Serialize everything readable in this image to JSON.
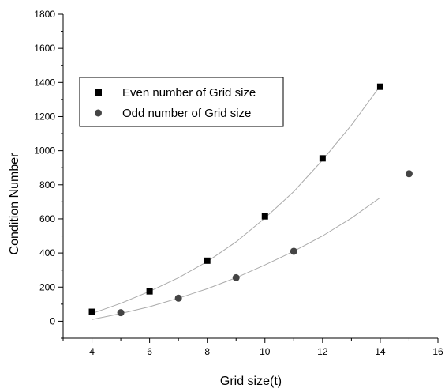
{
  "chart_data": {
    "type": "scatter",
    "title": "",
    "xlabel": "Grid size(t)",
    "ylabel": "Condition Number",
    "xlim": [
      3,
      16
    ],
    "ylim": [
      -100,
      1800
    ],
    "xticks": [
      4,
      6,
      8,
      10,
      12,
      14,
      16
    ],
    "yticks": [
      0,
      200,
      400,
      600,
      800,
      1000,
      1200,
      1400,
      1600,
      1800
    ],
    "grid": false,
    "legend": "upper-left",
    "series": [
      {
        "name": "Even number of Grid size",
        "marker": "square",
        "color": "#000000",
        "x": [
          4,
          6,
          8,
          10,
          12,
          14
        ],
        "y": [
          55,
          175,
          355,
          615,
          955,
          1375
        ],
        "fit": {
          "color": "#aaaaaa",
          "x": [
            4,
            5,
            6,
            7,
            8,
            9,
            10,
            11,
            12,
            13,
            14
          ],
          "y": [
            45,
            105,
            175,
            255,
            350,
            465,
            605,
            760,
            945,
            1150,
            1380
          ]
        }
      },
      {
        "name": "Odd number of Grid size",
        "marker": "circle",
        "color": "#444444",
        "x": [
          5,
          7,
          9,
          11,
          15
        ],
        "y": [
          50,
          135,
          255,
          410,
          865
        ],
        "fit": {
          "color": "#aaaaaa",
          "x": [
            4,
            5,
            6,
            7,
            8,
            9,
            10,
            11,
            12,
            13,
            14
          ],
          "y": [
            10,
            45,
            85,
            135,
            190,
            255,
            330,
            410,
            500,
            605,
            725
          ]
        }
      }
    ]
  }
}
